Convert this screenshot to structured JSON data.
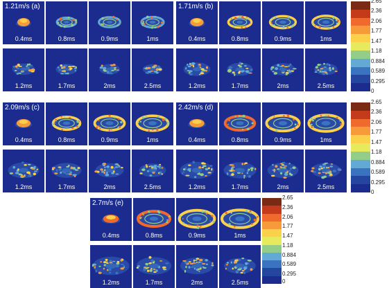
{
  "groups": [
    {
      "id": "a",
      "label": "1.21m/s (a)",
      "times": [
        "0.4ms",
        "0.8ms",
        "0.9ms",
        "1ms",
        "1.2ms",
        "1.7ms",
        "2ms",
        "2.5ms"
      ]
    },
    {
      "id": "b",
      "label": "1.71m/s (b)",
      "times": [
        "0.4ms",
        "0.8ms",
        "0.9ms",
        "1ms",
        "1.2ms",
        "1.7ms",
        "2ms",
        "2.5ms"
      ]
    },
    {
      "id": "c",
      "label": "2.09m/s (c)",
      "times": [
        "0.4ms",
        "0.8ms",
        "0.9ms",
        "1ms",
        "1.2ms",
        "1.7ms",
        "2ms",
        "2.5ms"
      ]
    },
    {
      "id": "d",
      "label": "2.42m/s (d)",
      "times": [
        "0.4ms",
        "0.8ms",
        "0.9ms",
        "1ms",
        "1.2ms",
        "1.7ms",
        "2ms",
        "2.5ms"
      ]
    },
    {
      "id": "e",
      "label": "2.7m/s (e)",
      "times": [
        "0.4ms",
        "0.8ms",
        "0.9ms",
        "1ms",
        "1.2ms",
        "1.7ms",
        "2ms",
        "2.5ms"
      ]
    }
  ],
  "colorbar": {
    "ticks": [
      "2.65",
      "2.36",
      "2.06",
      "1.77",
      "1.47",
      "1.18",
      "0.884",
      "0.589",
      "0.295",
      "0"
    ],
    "colors": [
      "#7a2a14",
      "#c33b1a",
      "#ef6a2c",
      "#f79a3a",
      "#fbd04a",
      "#e6ea5c",
      "#93cd8a",
      "#62a9d6",
      "#3a74c0",
      "#24469f",
      "#1c2c8e"
    ]
  }
}
